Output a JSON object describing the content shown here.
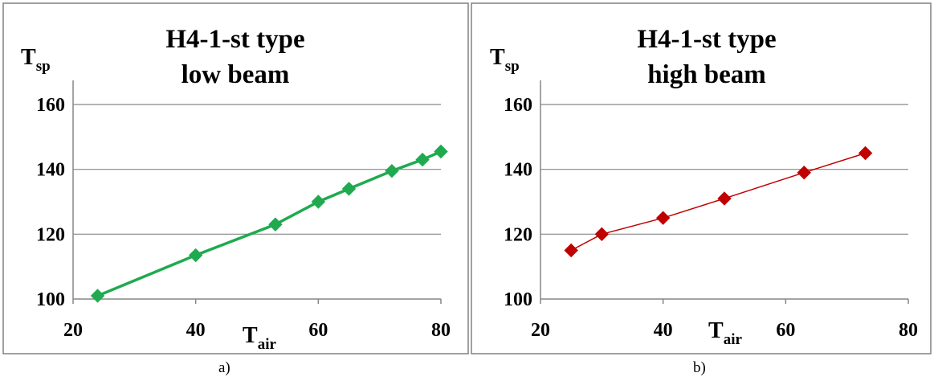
{
  "chart_data": [
    {
      "type": "line",
      "title_line1": "H4-1-st type",
      "title_line2": "low beam",
      "ylabel_main": "T",
      "ylabel_sub": "sp",
      "xlabel_main": "T",
      "xlabel_sub": "air",
      "xlim": [
        20,
        80
      ],
      "ylim": [
        100,
        160
      ],
      "xticks": [
        "20",
        "40",
        "60",
        "80"
      ],
      "yticks": [
        "100",
        "120",
        "140",
        "160"
      ],
      "grid": "horizontal",
      "legend": "none",
      "caption": "a)",
      "color": "#1faa4f",
      "series": [
        {
          "x": [
            24,
            40,
            53,
            60,
            65,
            72,
            77,
            80
          ],
          "y": [
            101,
            113.5,
            123,
            130,
            134,
            139.5,
            143,
            145.5
          ]
        }
      ]
    },
    {
      "type": "line",
      "title_line1": "H4-1-st type",
      "title_line2": "high beam",
      "ylabel_main": "T",
      "ylabel_sub": "sp",
      "xlabel_main": "T",
      "xlabel_sub": "air",
      "xlim": [
        20,
        80
      ],
      "ylim": [
        100,
        160
      ],
      "xticks": [
        "20",
        "40",
        "60",
        "80"
      ],
      "yticks": [
        "100",
        "120",
        "140",
        "160"
      ],
      "grid": "horizontal",
      "legend": "none",
      "caption": "b)",
      "color": "#c00000",
      "series": [
        {
          "x": [
            25,
            30,
            40,
            50,
            63,
            73
          ],
          "y": [
            115,
            120,
            125,
            131,
            139,
            145
          ]
        }
      ]
    }
  ]
}
